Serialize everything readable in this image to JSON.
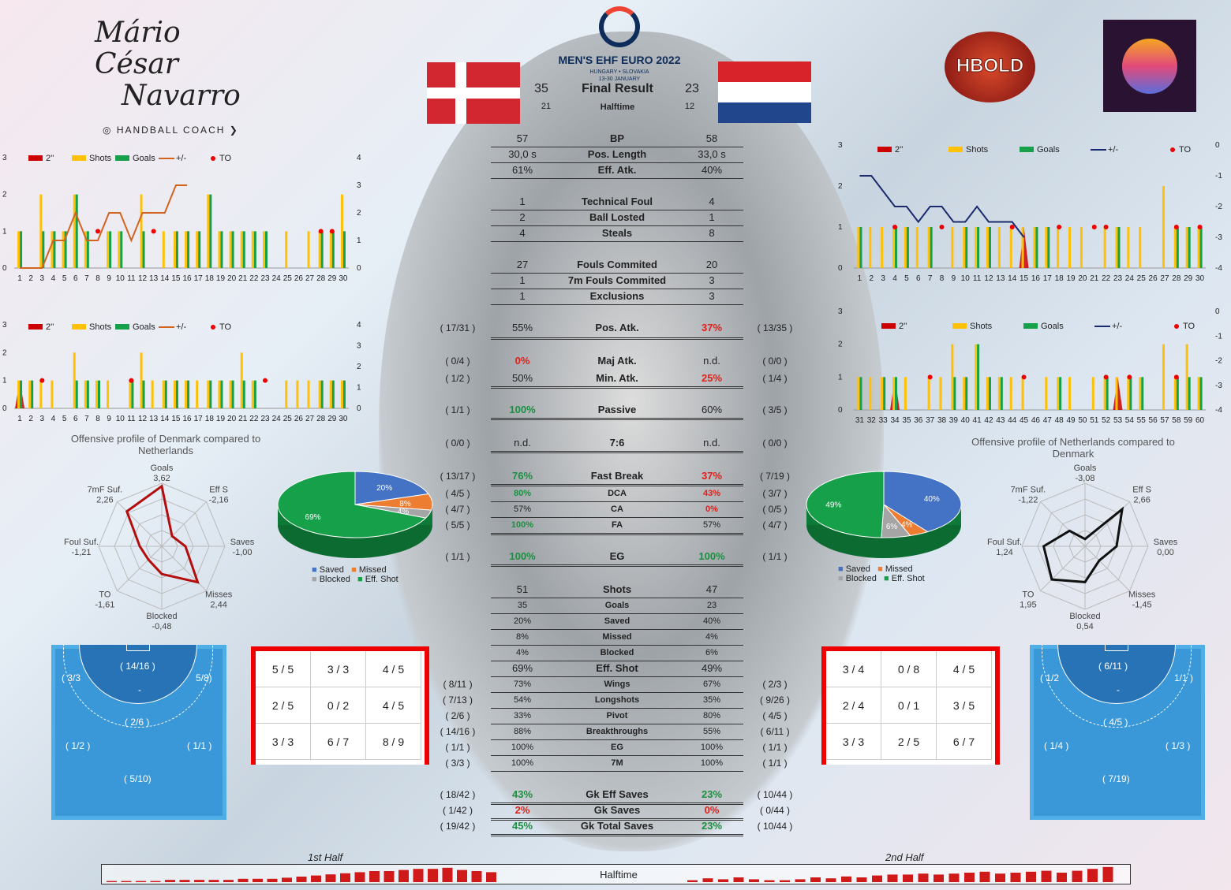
{
  "header": {
    "coach_name_line1": "Mário César",
    "coach_name_line2": "Navarro",
    "coach_title": "HANDBALL COACH",
    "event": "MEN'S EHF EURO 2022",
    "event_sub": "HUNGARY • SLOVAKIA",
    "event_dates": "13-30 JANUARY",
    "brand": "HBOLD"
  },
  "score": {
    "home": "35",
    "away": "23",
    "label": "Final Result",
    "home_ht": "21",
    "away_ht": "12",
    "ht_label": "Halftime"
  },
  "colors": {
    "dk_red": "#e4303a",
    "nl_red": "#d8232a",
    "nl_blue": "#21468b",
    "green": "#17a04a",
    "yellow": "#ffc107",
    "orange": "#d0641e",
    "navy": "#1a2a6c"
  },
  "stats_top": [
    {
      "l": "57",
      "c": "BP",
      "r": "58"
    },
    {
      "l": "30,0 s",
      "c": "Pos. Length",
      "r": "33,0 s"
    },
    {
      "l": "61%",
      "c": "Eff. Atk.",
      "r": "40%"
    }
  ],
  "stats_fouls1": [
    {
      "l": "1",
      "c": "Technical Foul",
      "r": "4"
    },
    {
      "l": "2",
      "c": "Ball Losted",
      "r": "1"
    },
    {
      "l": "4",
      "c": "Steals",
      "r": "8"
    }
  ],
  "stats_fouls2": [
    {
      "l": "27",
      "c": "Fouls Commited",
      "r": "20"
    },
    {
      "l": "1",
      "c": "7m Fouls Commited",
      "r": "3"
    },
    {
      "l": "1",
      "c": "Exclusions",
      "r": "3"
    }
  ],
  "attack": [
    {
      "a": "( 17/31 )",
      "l": "55%",
      "c": "Pos. Atk.",
      "r": "37%",
      "b": "( 13/35 )"
    },
    {
      "a": "( 0/4 )",
      "l": "0%",
      "c": "Maj Atk.",
      "r": "n.d.",
      "b": "( 0/0 )"
    },
    {
      "a": "( 1/2 )",
      "l": "50%",
      "c": "Min. Atk.",
      "r": "25%",
      "b": "( 1/4 )"
    },
    {
      "a": "( 1/1 )",
      "l": "100%",
      "c": "Passive",
      "r": "60%",
      "b": "( 3/5 )"
    },
    {
      "a": "( 0/0 )",
      "l": "n.d.",
      "c": "7:6",
      "r": "n.d.",
      "b": "( 0/0 )"
    },
    {
      "a": "( 13/17 )",
      "l": "76%",
      "c": "Fast Break",
      "r": "37%",
      "b": "( 7/19 )"
    },
    {
      "a": "( 4/5 )",
      "l": "80%",
      "c": "DCA",
      "r": "43%",
      "b": "( 3/7 )"
    },
    {
      "a": "( 4/7 )",
      "l": "57%",
      "c": "CA",
      "r": "0%",
      "b": "( 0/5 )"
    },
    {
      "a": "( 5/5 )",
      "l": "100%",
      "c": "FA",
      "r": "57%",
      "b": "( 4/7 )"
    },
    {
      "a": "( 1/1 )",
      "l": "100%",
      "c": "EG",
      "r": "100%",
      "b": "( 1/1 )"
    }
  ],
  "shots": [
    {
      "l": "51",
      "c": "Shots",
      "r": "47"
    },
    {
      "l": "35",
      "c": "Goals",
      "r": "23"
    },
    {
      "l": "20%",
      "c": "Saved",
      "r": "40%"
    },
    {
      "l": "8%",
      "c": "Missed",
      "r": "4%"
    },
    {
      "l": "4%",
      "c": "Blocked",
      "r": "6%"
    },
    {
      "l": "69%",
      "c": "Eff. Shot",
      "r": "49%"
    }
  ],
  "positions": [
    {
      "a": "( 8/11 )",
      "l": "73%",
      "c": "Wings",
      "r": "67%",
      "b": "( 2/3 )"
    },
    {
      "a": "( 7/13 )",
      "l": "54%",
      "c": "Longshots",
      "r": "35%",
      "b": "( 9/26 )"
    },
    {
      "a": "( 2/6 )",
      "l": "33%",
      "c": "Pivot",
      "r": "80%",
      "b": "( 4/5 )"
    },
    {
      "a": "( 14/16 )",
      "l": "88%",
      "c": "Breakthroughs",
      "r": "55%",
      "b": "( 6/11 )"
    },
    {
      "a": "( 1/1 )",
      "l": "100%",
      "c": "EG",
      "r": "100%",
      "b": "( 1/1 )"
    },
    {
      "a": "( 3/3 )",
      "l": "100%",
      "c": "7M",
      "r": "100%",
      "b": "( 1/1 )"
    }
  ],
  "gk": [
    {
      "a": "( 18/42 )",
      "l": "43%",
      "c": "Gk Eff Saves",
      "r": "23%",
      "b": "( 10/44 )"
    },
    {
      "a": "( 1/42 )",
      "l": "2%",
      "c": "Gk Saves",
      "r": "0%",
      "b": "( 0/44 )"
    },
    {
      "a": "( 19/42 )",
      "l": "45%",
      "c": "Gk Total Saves",
      "r": "23%",
      "b": "( 10/44 )"
    }
  ],
  "goal_home": [
    "5 / 5",
    "3 / 3",
    "4 / 5",
    "2 / 5",
    "0 / 2",
    "4 / 5",
    "3 / 3",
    "6 / 7",
    "8 / 9"
  ],
  "goal_away": [
    "3 / 4",
    "0 / 8",
    "4 / 5",
    "2 / 4",
    "0 / 1",
    "3 / 5",
    "3 / 3",
    "2 / 5",
    "6 / 7"
  ],
  "court_home": {
    "top": "( 14/16 )",
    "lw": "( 3/3",
    "rw": "5/8)",
    "mid": "-",
    "pivot": "( 2/6 )",
    "lb": "( 1/2 )",
    "rb": "( 1/1 )",
    "back": "( 5/10)"
  },
  "court_away": {
    "top": "( 6/11 )",
    "lw": "( 1/2",
    "rw": "1/1 )",
    "mid": "-",
    "pivot": "( 4/5 )",
    "lb": "( 1/4 )",
    "rb": "( 1/3 )",
    "back": "( 7/19)"
  },
  "radar_home": {
    "title": "Offensive profile of Denmark compared to Netherlands",
    "axes": [
      "Goals",
      "Eff S",
      "Saves",
      "Misses",
      "Blocked",
      "TO",
      "Foul Suf.",
      "7mF Suf."
    ],
    "values": [
      3.62,
      -2.16,
      -1.0,
      2.44,
      -0.48,
      -1.61,
      -1.21,
      2.26
    ],
    "labels": [
      "3,62",
      "-2,16",
      "-1,00",
      "2,44",
      "-0,48",
      "-1,61",
      "-1,21",
      "2,26"
    ]
  },
  "radar_away": {
    "title": "Offensive profile of Netherlands compared to Denmark",
    "axes": [
      "Goals",
      "Eff S",
      "Saves",
      "Misses",
      "Blocked",
      "TO",
      "Foul Suf.",
      "7mF Suf."
    ],
    "values": [
      -3.08,
      2.66,
      0.0,
      -1.45,
      0.54,
      1.95,
      1.24,
      -1.22
    ],
    "labels": [
      "-3,08",
      "2,66",
      "0,00",
      "-1,45",
      "0,54",
      "1,95",
      "1,24",
      "-1,22"
    ]
  },
  "pie_legend": [
    "Saved",
    "Missed",
    "Blocked",
    "Eff. Shot"
  ],
  "timeline": {
    "first": "1st Half",
    "second": "2nd Half",
    "mid": "Halftime"
  },
  "chart_legend": [
    "2''",
    "Shots",
    "Goals",
    "+/-",
    "TO"
  ],
  "chart_data": [
    {
      "type": "bar",
      "id": "dk1",
      "x": [
        1,
        2,
        3,
        4,
        5,
        6,
        7,
        8,
        9,
        10,
        11,
        12,
        13,
        14,
        15,
        16,
        17,
        18,
        19,
        20,
        21,
        22,
        23,
        24,
        25,
        26,
        27,
        28,
        29,
        30
      ],
      "shots": [
        1,
        0,
        2,
        1,
        1,
        2,
        1,
        0,
        1,
        1,
        0,
        2,
        0,
        1,
        1,
        1,
        1,
        2,
        1,
        1,
        1,
        1,
        1,
        0,
        1,
        0,
        1,
        1,
        1,
        2
      ],
      "goals": [
        1,
        0,
        1,
        1,
        1,
        2,
        1,
        0,
        1,
        1,
        0,
        1,
        0,
        0,
        1,
        1,
        1,
        2,
        1,
        1,
        1,
        1,
        1,
        0,
        0,
        0,
        0,
        1,
        1,
        1
      ],
      "two_min": [],
      "to": [
        8,
        13,
        28,
        29
      ],
      "pm": [
        0,
        0,
        0,
        1,
        1,
        2,
        1,
        1,
        2,
        2,
        1,
        2,
        2,
        2,
        3,
        3
      ],
      "ylim": [
        0,
        3
      ],
      "y2lim": [
        0,
        4
      ]
    },
    {
      "type": "bar",
      "id": "dk2",
      "x": [
        1,
        2,
        3,
        4,
        5,
        6,
        7,
        8,
        9,
        10,
        11,
        12,
        13,
        14,
        15,
        16,
        17,
        18,
        19,
        20,
        21,
        22,
        23,
        24,
        25,
        26,
        27,
        28,
        29,
        30
      ],
      "shots": [
        1,
        1,
        1,
        1,
        0,
        2,
        1,
        1,
        1,
        0,
        1,
        2,
        1,
        1,
        1,
        1,
        1,
        1,
        1,
        1,
        2,
        1,
        0,
        0,
        1,
        1,
        1,
        1,
        1,
        1
      ],
      "goals": [
        1,
        1,
        0,
        0,
        0,
        1,
        1,
        1,
        0,
        0,
        1,
        1,
        0,
        1,
        1,
        1,
        0,
        1,
        1,
        1,
        1,
        1,
        0,
        0,
        0,
        0,
        0,
        1,
        1,
        1
      ],
      "two_min": [
        1
      ],
      "to": [
        3,
        11,
        23
      ],
      "ylim": [
        0,
        3
      ],
      "y2lim": [
        0,
        4
      ]
    },
    {
      "type": "bar",
      "id": "nl1",
      "x": [
        1,
        2,
        3,
        4,
        5,
        6,
        7,
        8,
        9,
        10,
        11,
        12,
        13,
        14,
        15,
        16,
        17,
        18,
        19,
        20,
        21,
        22,
        23,
        24,
        25,
        26,
        27,
        28,
        29,
        30
      ],
      "shots": [
        1,
        1,
        1,
        1,
        1,
        1,
        1,
        0,
        1,
        1,
        1,
        1,
        1,
        1,
        1,
        1,
        1,
        1,
        1,
        1,
        0,
        1,
        1,
        1,
        1,
        0,
        2,
        1,
        1,
        1
      ],
      "goals": [
        1,
        0,
        0,
        1,
        1,
        0,
        1,
        0,
        0,
        1,
        1,
        1,
        0,
        0,
        0,
        1,
        1,
        0,
        0,
        0,
        0,
        0,
        1,
        0,
        0,
        0,
        0,
        1,
        1,
        1
      ],
      "two_min": [
        15
      ],
      "to": [
        4,
        8,
        14,
        18,
        21,
        22,
        28,
        30
      ],
      "pm": [
        -1,
        -1,
        -1.5,
        -2,
        -2,
        -2.5,
        -2,
        -2,
        -2.5,
        -2.5,
        -2,
        -2.5,
        -2.5,
        -2.5,
        -3
      ],
      "ylim": [
        0,
        3
      ],
      "y2lim": [
        -4,
        0
      ]
    },
    {
      "type": "bar",
      "id": "nl2",
      "x": [
        31,
        32,
        33,
        34,
        35,
        36,
        37,
        38,
        39,
        40,
        41,
        42,
        43,
        44,
        45,
        46,
        47,
        48,
        49,
        50,
        51,
        52,
        53,
        54,
        55,
        56,
        57,
        58,
        59,
        60
      ],
      "shots": [
        1,
        1,
        1,
        1,
        1,
        0,
        1,
        1,
        2,
        1,
        2,
        1,
        1,
        1,
        1,
        0,
        1,
        1,
        1,
        0,
        1,
        1,
        1,
        1,
        1,
        0,
        2,
        1,
        2,
        1
      ],
      "goals": [
        1,
        0,
        1,
        1,
        0,
        0,
        0,
        0,
        1,
        1,
        2,
        1,
        1,
        0,
        0,
        0,
        0,
        1,
        0,
        0,
        0,
        1,
        0,
        1,
        1,
        0,
        0,
        1,
        1,
        1
      ],
      "two_min": [
        34,
        53
      ],
      "to": [
        37,
        45,
        52,
        54,
        58
      ],
      "ylim": [
        0,
        3
      ],
      "y2lim": [
        -4,
        0
      ]
    },
    {
      "type": "pie",
      "id": "pie_home",
      "labels": [
        "Saved",
        "Missed",
        "Blocked",
        "Eff. Shot"
      ],
      "values": [
        20,
        8,
        4,
        69
      ]
    },
    {
      "type": "pie",
      "id": "pie_away",
      "labels": [
        "Saved",
        "Missed",
        "Blocked",
        "Eff. Shot"
      ],
      "values": [
        40,
        4,
        6,
        49
      ]
    }
  ]
}
